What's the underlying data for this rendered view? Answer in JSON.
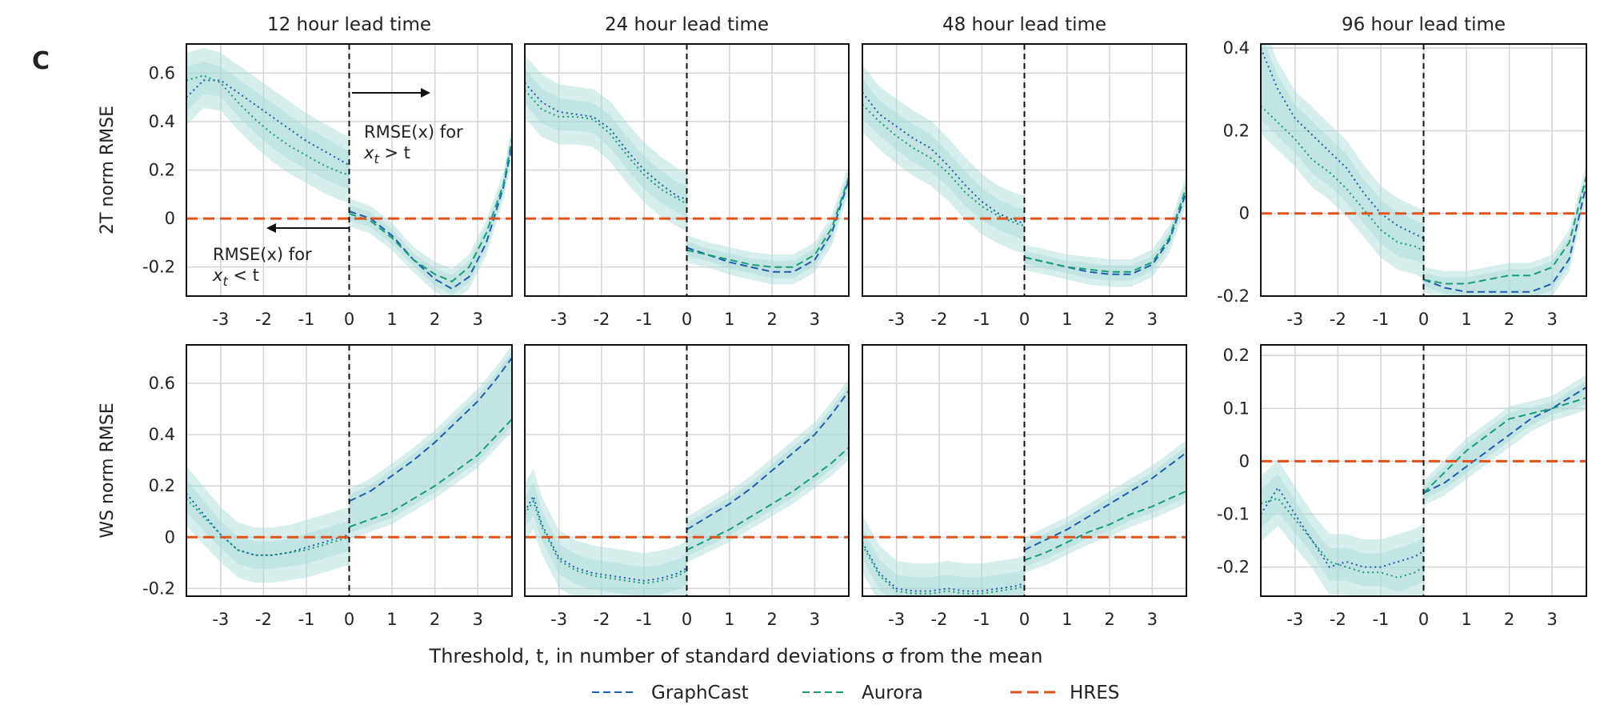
{
  "panel_letter": "C",
  "xlabel": "Threshold, t, in number of standard deviations σ from the mean",
  "legend": [
    {
      "name": "GraphCast",
      "color": "#1f5fa8",
      "style": "dashed"
    },
    {
      "name": "Aurora",
      "color": "#1a9e77",
      "style": "dashed"
    },
    {
      "name": "HRES",
      "color": "#e0521c",
      "style": "dashed"
    }
  ],
  "colors": {
    "graphcast": "#1f5fa8",
    "aurora": "#1a9e77",
    "hres": "#e0521c",
    "band": "#a9d9d6"
  },
  "annotations": {
    "above_line1": "RMSE(x) for",
    "above_line2": "x_t > t",
    "below_line1": "RMSE(x) for",
    "below_line2": "x_t < t"
  },
  "chart_data": [
    {
      "type": "line",
      "row": "2T",
      "title": "12 hour lead time",
      "ylabel": "2T norm RMSE",
      "xlim": [
        -3.8,
        3.8
      ],
      "ylim": [
        -0.32,
        0.72
      ],
      "xticks": [
        -3,
        -2,
        -1,
        0,
        1,
        2,
        3
      ],
      "xticklabels": [
        "-3",
        "-2",
        "-1",
        "0",
        "1",
        "2",
        "3"
      ],
      "yticks": [
        -0.2,
        0,
        0.2,
        0.4,
        0.6
      ],
      "yticklabels": [
        "-0.2",
        "0",
        "0.2",
        "0.4",
        "0.6"
      ],
      "grid": true,
      "left": {
        "x": [
          -3.8,
          -3.4,
          -3,
          -2.6,
          -2.2,
          -1.8,
          -1.4,
          -1,
          -0.6,
          -0.2,
          0
        ],
        "graphcast": [
          0.5,
          0.57,
          0.57,
          0.52,
          0.47,
          0.42,
          0.37,
          0.32,
          0.28,
          0.24,
          0.22
        ],
        "aurora": [
          0.57,
          0.59,
          0.56,
          0.48,
          0.41,
          0.35,
          0.3,
          0.26,
          0.22,
          0.19,
          0.18
        ]
      },
      "right": {
        "x": [
          0,
          0.5,
          1,
          1.5,
          2,
          2.4,
          2.8,
          3.2,
          3.6,
          3.8
        ],
        "graphcast": [
          0.03,
          0.0,
          -0.07,
          -0.17,
          -0.25,
          -0.29,
          -0.24,
          -0.1,
          0.13,
          0.3
        ],
        "aurora": [
          0.02,
          -0.01,
          -0.08,
          -0.17,
          -0.23,
          -0.26,
          -0.2,
          -0.06,
          0.14,
          0.33
        ]
      },
      "hres": 0
    },
    {
      "type": "line",
      "row": "2T",
      "title": "24 hour lead time",
      "ylabel": "",
      "xlim": [
        -3.8,
        3.8
      ],
      "ylim": [
        -0.32,
        0.72
      ],
      "xticks": [
        -3,
        -2,
        -1,
        0,
        1,
        2,
        3
      ],
      "xticklabels": [
        "-3",
        "-2",
        "-1",
        "0",
        "1",
        "2",
        "3"
      ],
      "yticks": [
        -0.2,
        0,
        0.2,
        0.4,
        0.6
      ],
      "yticklabels": [],
      "grid": true,
      "left": {
        "x": [
          -3.8,
          -3.4,
          -3,
          -2.6,
          -2.2,
          -1.8,
          -1.4,
          -1,
          -0.6,
          -0.2,
          0
        ],
        "graphcast": [
          0.56,
          0.48,
          0.44,
          0.43,
          0.42,
          0.37,
          0.28,
          0.2,
          0.14,
          0.09,
          0.08
        ],
        "aurora": [
          0.53,
          0.45,
          0.42,
          0.42,
          0.41,
          0.35,
          0.26,
          0.18,
          0.12,
          0.08,
          0.06
        ]
      },
      "right": {
        "x": [
          0,
          0.5,
          1,
          1.5,
          2,
          2.5,
          3,
          3.4,
          3.8
        ],
        "graphcast": [
          -0.12,
          -0.15,
          -0.18,
          -0.2,
          -0.22,
          -0.22,
          -0.17,
          -0.06,
          0.16
        ],
        "aurora": [
          -0.13,
          -0.15,
          -0.17,
          -0.19,
          -0.2,
          -0.2,
          -0.15,
          -0.04,
          0.17
        ]
      },
      "hres": 0
    },
    {
      "type": "line",
      "row": "2T",
      "title": "48 hour lead time",
      "ylabel": "",
      "xlim": [
        -3.8,
        3.8
      ],
      "ylim": [
        -0.32,
        0.72
      ],
      "xticks": [
        -3,
        -2,
        -1,
        0,
        1,
        2,
        3
      ],
      "xticklabels": [
        "-3",
        "-2",
        "-1",
        "0",
        "1",
        "2",
        "3"
      ],
      "yticks": [
        -0.2,
        0,
        0.2,
        0.4,
        0.6
      ],
      "yticklabels": [],
      "grid": true,
      "left": {
        "x": [
          -3.8,
          -3.4,
          -3,
          -2.6,
          -2.2,
          -1.8,
          -1.4,
          -1,
          -0.6,
          -0.2,
          0
        ],
        "graphcast": [
          0.52,
          0.43,
          0.38,
          0.33,
          0.29,
          0.22,
          0.14,
          0.07,
          0.02,
          -0.01,
          -0.02
        ],
        "aurora": [
          0.47,
          0.4,
          0.34,
          0.29,
          0.25,
          0.19,
          0.11,
          0.05,
          0.01,
          -0.02,
          -0.03
        ]
      },
      "right": {
        "x": [
          0,
          0.5,
          1,
          1.5,
          2,
          2.5,
          3,
          3.4,
          3.8
        ],
        "graphcast": [
          -0.16,
          -0.18,
          -0.2,
          -0.22,
          -0.23,
          -0.23,
          -0.19,
          -0.09,
          0.11
        ],
        "aurora": [
          -0.16,
          -0.18,
          -0.2,
          -0.21,
          -0.22,
          -0.22,
          -0.18,
          -0.08,
          0.13
        ]
      },
      "hres": 0
    },
    {
      "type": "line",
      "row": "2T",
      "title": "96 hour lead time",
      "ylabel": "",
      "xlim": [
        -3.8,
        3.8
      ],
      "ylim": [
        -0.2,
        0.41
      ],
      "xticks": [
        -3,
        -2,
        -1,
        0,
        1,
        2,
        3
      ],
      "xticklabels": [
        "-3",
        "-2",
        "-1",
        "0",
        "1",
        "2",
        "3"
      ],
      "yticks": [
        -0.2,
        0,
        0.2,
        0.4
      ],
      "yticklabels": [
        "-0.2",
        "0",
        "0.2",
        "0.4"
      ],
      "grid": true,
      "left": {
        "x": [
          -3.8,
          -3.4,
          -3,
          -2.6,
          -2.2,
          -1.8,
          -1.4,
          -1,
          -0.6,
          -0.2,
          0
        ],
        "graphcast": [
          0.4,
          0.3,
          0.23,
          0.19,
          0.15,
          0.11,
          0.05,
          0.0,
          -0.03,
          -0.05,
          -0.06
        ],
        "aurora": [
          0.26,
          0.22,
          0.18,
          0.13,
          0.1,
          0.06,
          0.01,
          -0.04,
          -0.07,
          -0.08,
          -0.09
        ]
      },
      "right": {
        "x": [
          0,
          0.5,
          1,
          1.5,
          2,
          2.5,
          3,
          3.4,
          3.8
        ],
        "graphcast": [
          -0.16,
          -0.18,
          -0.19,
          -0.19,
          -0.19,
          -0.19,
          -0.17,
          -0.11,
          0.07
        ],
        "aurora": [
          -0.16,
          -0.17,
          -0.17,
          -0.16,
          -0.15,
          -0.15,
          -0.13,
          -0.07,
          0.09
        ]
      },
      "hres": 0
    },
    {
      "type": "line",
      "row": "WS",
      "title": "",
      "ylabel": "WS norm RMSE",
      "xlim": [
        -3.8,
        3.8
      ],
      "ylim": [
        -0.23,
        0.75
      ],
      "xticks": [
        -3,
        -2,
        -1,
        0,
        1,
        2,
        3
      ],
      "xticklabels": [
        "-3",
        "-2",
        "-1",
        "0",
        "1",
        "2",
        "3"
      ],
      "yticks": [
        -0.2,
        0,
        0.2,
        0.4,
        0.6
      ],
      "yticklabels": [
        "-0.2",
        "0",
        "0.2",
        "0.4",
        "0.6"
      ],
      "grid": true,
      "left": {
        "x": [
          -3.8,
          -3.4,
          -3,
          -2.6,
          -2.2,
          -1.8,
          -1.4,
          -1,
          -0.6,
          -0.2,
          0
        ],
        "graphcast": [
          0.17,
          0.09,
          0.01,
          -0.05,
          -0.07,
          -0.07,
          -0.06,
          -0.04,
          -0.02,
          0.0,
          0.01
        ],
        "aurora": [
          0.15,
          0.08,
          0.01,
          -0.05,
          -0.07,
          -0.07,
          -0.06,
          -0.05,
          -0.03,
          -0.01,
          0.0
        ]
      },
      "right": {
        "x": [
          0,
          0.5,
          1,
          1.5,
          2,
          2.5,
          3,
          3.4,
          3.8
        ],
        "graphcast": [
          0.14,
          0.18,
          0.24,
          0.3,
          0.37,
          0.45,
          0.53,
          0.61,
          0.7
        ],
        "aurora": [
          0.04,
          0.07,
          0.1,
          0.15,
          0.2,
          0.26,
          0.32,
          0.39,
          0.46
        ]
      },
      "hres": 0
    },
    {
      "type": "line",
      "row": "WS",
      "title": "",
      "ylabel": "",
      "xlim": [
        -3.8,
        3.8
      ],
      "ylim": [
        -0.23,
        0.75
      ],
      "xticks": [
        -3,
        -2,
        -1,
        0,
        1,
        2,
        3
      ],
      "xticklabels": [
        "-3",
        "-2",
        "-1",
        "0",
        "1",
        "2",
        "3"
      ],
      "yticks": [
        -0.2,
        0,
        0.2,
        0.4,
        0.6
      ],
      "yticklabels": [],
      "grid": true,
      "left": {
        "x": [
          -3.8,
          -3.6,
          -3.4,
          -3,
          -2.6,
          -2.2,
          -1.8,
          -1.4,
          -1,
          -0.6,
          -0.2,
          0
        ],
        "graphcast": [
          0.1,
          0.16,
          0.05,
          -0.08,
          -0.12,
          -0.14,
          -0.15,
          -0.16,
          -0.17,
          -0.16,
          -0.14,
          -0.12
        ],
        "aurora": [
          0.09,
          0.14,
          0.04,
          -0.09,
          -0.13,
          -0.15,
          -0.16,
          -0.17,
          -0.18,
          -0.17,
          -0.15,
          -0.13
        ]
      },
      "right": {
        "x": [
          0,
          0.5,
          1,
          1.5,
          2,
          2.5,
          3,
          3.4,
          3.8
        ],
        "graphcast": [
          0.03,
          0.08,
          0.13,
          0.19,
          0.26,
          0.33,
          0.4,
          0.48,
          0.57
        ],
        "aurora": [
          -0.05,
          -0.01,
          0.03,
          0.08,
          0.13,
          0.18,
          0.24,
          0.29,
          0.35
        ]
      },
      "hres": 0
    },
    {
      "type": "line",
      "row": "WS",
      "title": "",
      "ylabel": "",
      "xlim": [
        -3.8,
        3.8
      ],
      "ylim": [
        -0.23,
        0.75
      ],
      "xticks": [
        -3,
        -2,
        -1,
        0,
        1,
        2,
        3
      ],
      "xticklabels": [
        "-3",
        "-2",
        "-1",
        "0",
        "1",
        "2",
        "3"
      ],
      "yticks": [
        -0.2,
        0,
        0.2,
        0.4,
        0.6
      ],
      "yticklabels": [],
      "grid": true,
      "left": {
        "x": [
          -3.8,
          -3.4,
          -3,
          -2.6,
          -2.2,
          -1.8,
          -1.4,
          -1,
          -0.6,
          -0.2,
          0
        ],
        "graphcast": [
          -0.02,
          -0.14,
          -0.2,
          -0.21,
          -0.21,
          -0.2,
          -0.21,
          -0.21,
          -0.2,
          -0.19,
          -0.18
        ],
        "aurora": [
          -0.03,
          -0.15,
          -0.21,
          -0.22,
          -0.22,
          -0.21,
          -0.22,
          -0.22,
          -0.21,
          -0.2,
          -0.19
        ]
      },
      "right": {
        "x": [
          0,
          0.5,
          1,
          1.5,
          2,
          2.5,
          3,
          3.4,
          3.8
        ],
        "graphcast": [
          -0.05,
          -0.01,
          0.03,
          0.08,
          0.13,
          0.18,
          0.23,
          0.28,
          0.33
        ],
        "aurora": [
          -0.09,
          -0.06,
          -0.02,
          0.02,
          0.05,
          0.09,
          0.12,
          0.15,
          0.18
        ]
      },
      "hres": 0
    },
    {
      "type": "line",
      "row": "WS",
      "title": "",
      "ylabel": "",
      "xlim": [
        -3.8,
        3.8
      ],
      "ylim": [
        -0.255,
        0.22
      ],
      "xticks": [
        -3,
        -2,
        -1,
        0,
        1,
        2,
        3
      ],
      "xticklabels": [
        "-3",
        "-2",
        "-1",
        "0",
        "1",
        "2",
        "3"
      ],
      "yticks": [
        -0.2,
        -0.1,
        0,
        0.1,
        0.2
      ],
      "yticklabels": [
        "-0.2",
        "-0.1",
        "0",
        "0.1",
        "0.2"
      ],
      "grid": true,
      "left": {
        "x": [
          -3.8,
          -3.4,
          -3,
          -2.6,
          -2.2,
          -1.8,
          -1.4,
          -1,
          -0.6,
          -0.2,
          0
        ],
        "graphcast": [
          -0.1,
          -0.05,
          -0.1,
          -0.15,
          -0.2,
          -0.19,
          -0.2,
          -0.2,
          -0.19,
          -0.18,
          -0.17
        ],
        "aurora": [
          -0.08,
          -0.07,
          -0.11,
          -0.15,
          -0.19,
          -0.2,
          -0.21,
          -0.21,
          -0.22,
          -0.21,
          -0.2
        ]
      },
      "right": {
        "x": [
          0,
          0.5,
          1,
          1.5,
          2,
          2.5,
          3,
          3.4,
          3.8
        ],
        "graphcast": [
          -0.06,
          -0.04,
          -0.01,
          0.02,
          0.05,
          0.08,
          0.1,
          0.12,
          0.14
        ],
        "aurora": [
          -0.06,
          -0.02,
          0.02,
          0.05,
          0.08,
          0.09,
          0.1,
          0.11,
          0.12
        ]
      },
      "hres": 0
    }
  ]
}
